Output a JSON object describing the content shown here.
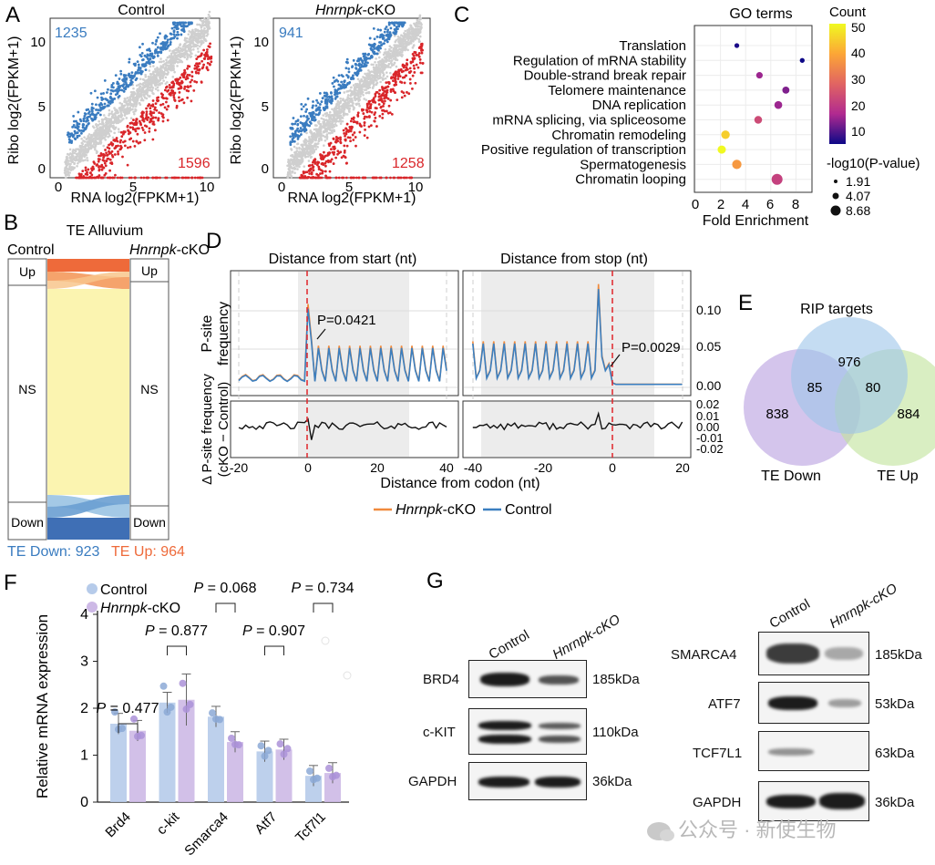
{
  "panel_letters": [
    "A",
    "B",
    "C",
    "D",
    "E",
    "F",
    "G"
  ],
  "panelA": {
    "xlabel": "RNA log2(FPKM+1)",
    "ylabel": "Ribo log2(FPKM+1)",
    "xticks": [
      "0",
      "5",
      "10"
    ],
    "yticks": [
      "0",
      "5",
      "10"
    ],
    "plots": [
      {
        "title_plain": "Control",
        "title_italic": "",
        "title_suffix": "",
        "up_count": "1235",
        "down_count": "1596"
      },
      {
        "title_plain": "",
        "title_italic": "Hnrnpk",
        "title_suffix": "-cKO",
        "up_count": "941",
        "down_count": "1258"
      }
    ],
    "colors": {
      "up": "#3a7cc0",
      "down": "#d9262a",
      "ns": "#cfcfcf"
    }
  },
  "panelB": {
    "title": "TE Alluvium",
    "left_label": "Control",
    "right_label_italic": "Hnrnpk",
    "right_label_suffix": "-cKO",
    "categories": [
      "Up",
      "NS",
      "Down"
    ],
    "legend_down": "TE Down: 923",
    "legend_up": "TE Up: 964",
    "colors": {
      "up": "#ee6a3a",
      "ns": "#fbf4b0",
      "down": "#3f7fc1"
    }
  },
  "panelC": {
    "title": "GO terms",
    "xlabel": "Fold Enrichment",
    "xticks": [
      "0",
      "2",
      "4",
      "6",
      "8"
    ],
    "count_title": "Count",
    "count_ticks": [
      "50",
      "40",
      "30",
      "20",
      "10"
    ],
    "size_title": "-log10(P-value)",
    "size_values": [
      "1.91",
      "4.07",
      "8.68"
    ],
    "terms": [
      {
        "name": "Translation",
        "fold": 3.3,
        "count": 5,
        "p": 1.9
      },
      {
        "name": "Regulation of mRNA stability",
        "fold": 8.5,
        "count": 4,
        "p": 1.9
      },
      {
        "name": "Double-strand break repair",
        "fold": 5.1,
        "count": 14,
        "p": 3.6
      },
      {
        "name": "Telomere maintenance",
        "fold": 7.2,
        "count": 12,
        "p": 4.2
      },
      {
        "name": "DNA replication",
        "fold": 6.6,
        "count": 14,
        "p": 4.9
      },
      {
        "name": "mRNA splicing, via spliceosome",
        "fold": 5.0,
        "count": 22,
        "p": 4.8
      },
      {
        "name": "Chromatin remodeling",
        "fold": 2.4,
        "count": 44,
        "p": 5.6
      },
      {
        "name": "Positive regulation of transcription",
        "fold": 2.1,
        "count": 50,
        "p": 5.3
      },
      {
        "name": "Spermatogenesis",
        "fold": 3.3,
        "count": 36,
        "p": 6.4
      },
      {
        "name": "Chromatin looping",
        "fold": 6.5,
        "count": 20,
        "p": 8.0
      }
    ]
  },
  "panelD": {
    "title_start": "Distance from start (nt)",
    "title_stop": "Distance from stop (nt)",
    "ylabel_top": "P-site frequency",
    "ylabel_bottom": "Δ P-site frequency (cKO − Control)",
    "xlabel": "Distance from codon (nt)",
    "top_yticks": [
      "0.10",
      "0.05",
      "0.00"
    ],
    "bottom_yticks": [
      "0.02",
      "0.01",
      "0.00",
      "-0.01",
      "-0.02"
    ],
    "start_xticks": [
      "-20",
      "0",
      "20",
      "40"
    ],
    "stop_xticks": [
      "-40",
      "-20",
      "0",
      "20"
    ],
    "p_start": "P=0.0421",
    "p_stop": "P=0.0029",
    "legend_cko_italic": "Hnrnpk",
    "legend_cko_suffix": "-cKO",
    "legend_control": "Control",
    "colors": {
      "cko": "#f08a3c",
      "control": "#3b7fc0"
    }
  },
  "panelE": {
    "title": "RIP targets",
    "regions": {
      "rip_only": "976",
      "down_only": "838",
      "up_only": "884",
      "rip_down": "85",
      "rip_up": "80"
    },
    "label_down": "TE Down",
    "label_up": "TE Up"
  },
  "panelF": {
    "ylabel": "Relative mRNA expression",
    "yticks": [
      "0",
      "1",
      "2",
      "3",
      "4"
    ],
    "legend_control": "Control",
    "legend_cko_italic": "Hnrnpk",
    "legend_cko_suffix": "-cKO",
    "p_prefix": "P",
    "genes": [
      {
        "name": "Brd4",
        "control": 1.67,
        "cko": 1.52,
        "p": "= 0.477"
      },
      {
        "name": "c-kit",
        "control": 2.12,
        "cko": 2.18,
        "p": "= 0.877"
      },
      {
        "name": "Smarca4",
        "control": 1.82,
        "cko": 1.28,
        "p": "= 0.068"
      },
      {
        "name": "Atf7",
        "control": 1.08,
        "cko": 1.12,
        "p": "= 0.907"
      },
      {
        "name": "Tcf7l1",
        "control": 0.56,
        "cko": 0.62,
        "p": "= 0.734"
      }
    ],
    "colors": {
      "control": "#b6cbea",
      "cko": "#cdb9e6"
    }
  },
  "panelG": {
    "left": {
      "headers": [
        "Control",
        "Hnrnpk-cKO"
      ],
      "bands": [
        {
          "protein": "BRD4",
          "size": "185kDa"
        },
        {
          "protein": "c-KIT",
          "size": "110kDa"
        },
        {
          "protein": "GAPDH",
          "size": "36kDa"
        }
      ]
    },
    "right": {
      "headers": [
        "Control",
        "Hnrnpk-cKO"
      ],
      "bands": [
        {
          "protein": "SMARCA4",
          "size": "185kDa"
        },
        {
          "protein": "ATF7",
          "size": "53kDa"
        },
        {
          "protein": "TCF7L1",
          "size": "63kDa"
        },
        {
          "protein": "GAPDH",
          "size": "36kDa"
        }
      ]
    }
  },
  "watermark": "公众号 · 新使生物"
}
